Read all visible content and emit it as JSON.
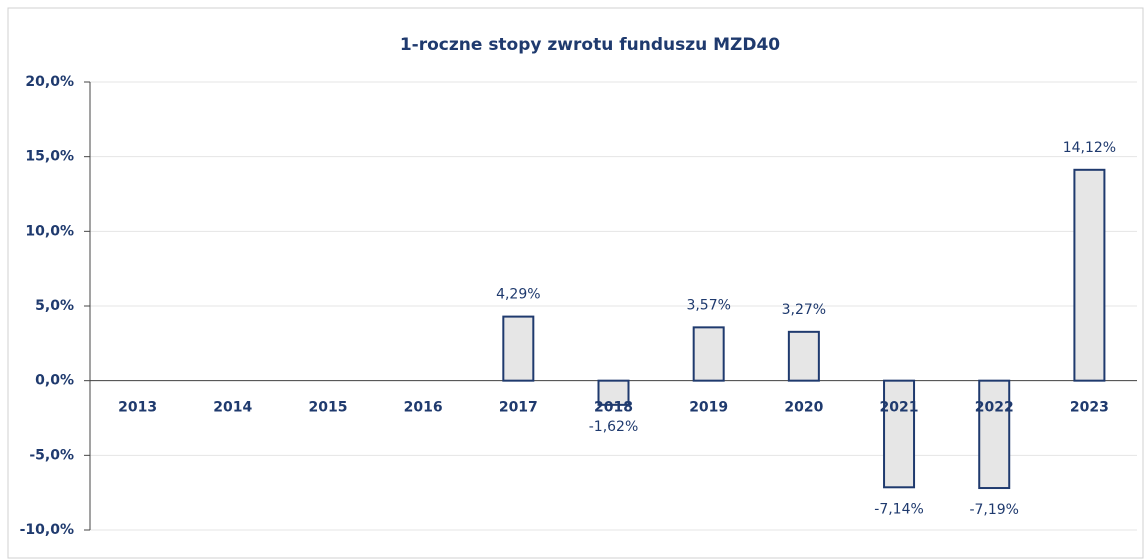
{
  "chart_data": {
    "type": "bar",
    "title": "1-roczne stopy zwrotu funduszu MZD40",
    "categories": [
      "2013",
      "2014",
      "2015",
      "2016",
      "2017",
      "2018",
      "2019",
      "2020",
      "2021",
      "2022",
      "2023"
    ],
    "values": [
      null,
      null,
      null,
      null,
      4.29,
      -1.62,
      3.57,
      3.27,
      -7.14,
      -7.19,
      14.12
    ],
    "value_labels": [
      null,
      null,
      null,
      null,
      "4,29%",
      "-1,62%",
      "3,57%",
      "3,27%",
      "-7,14%",
      "-7,19%",
      "14,12%"
    ],
    "color": "#e6e6e6",
    "edge_color": "#1f3a6e",
    "ylim": [
      -10,
      20
    ],
    "yticks": [
      {
        "value": -10,
        "label": "-10,0%"
      },
      {
        "value": -5,
        "label": "-5,0%"
      },
      {
        "value": 0,
        "label": "0,0%"
      },
      {
        "value": 5,
        "label": "5,0%"
      },
      {
        "value": 10,
        "label": "10,0%"
      },
      {
        "value": 15,
        "label": "15,0%"
      },
      {
        "value": 20,
        "label": "20,0%"
      }
    ],
    "grid": true
  }
}
